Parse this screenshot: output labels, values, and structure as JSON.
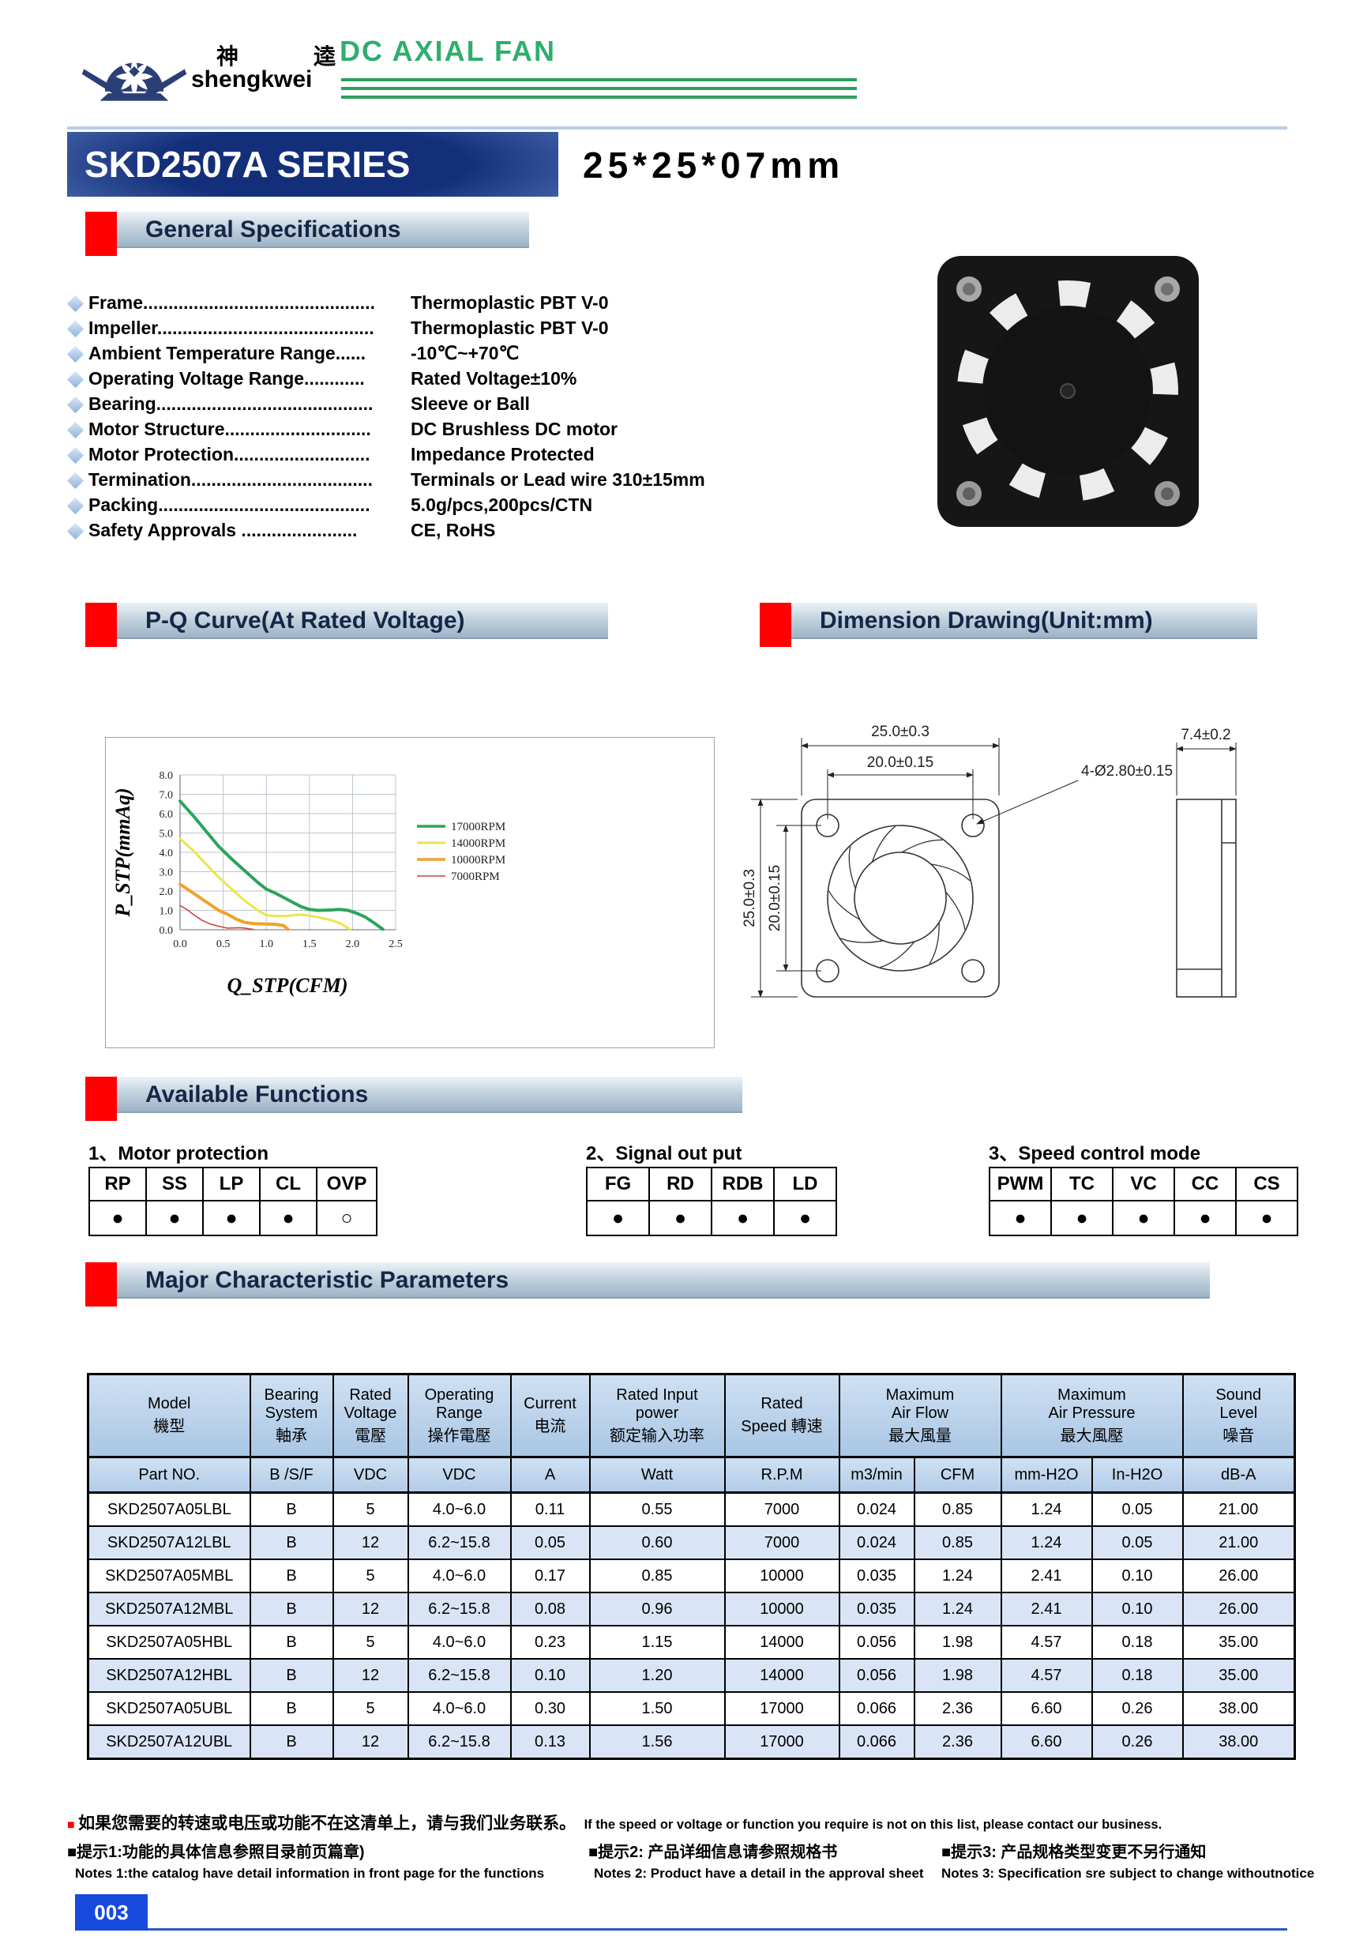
{
  "colors": {
    "brand_green": "#2fae6d",
    "navy": "#152647",
    "logo_navy": "#2b3f77",
    "section_red": "#fe0000",
    "table_header_blue": "#b9d2ec",
    "row_alt_blue": "#d9e5f6",
    "page_box_blue": "#1749dd"
  },
  "header": {
    "logo_cn_left": "神",
    "logo_cn_right": "逵",
    "logo_en": "shengkwei",
    "product_line": "DC AXIAL FAN"
  },
  "title": {
    "series": "SKD2507A SERIES",
    "size": "25*25*07mm"
  },
  "section_titles": {
    "general": "General Specifications",
    "pq_curve": "P-Q Curve(At Rated Voltage)",
    "dimension": "Dimension Drawing(Unit:mm)",
    "functions": "Available Functions",
    "parameters": "Major Characteristic Parameters"
  },
  "specs": [
    {
      "label": "Frame..............................................",
      "value": "Thermoplastic PBT V-0"
    },
    {
      "label": "Impeller...........................................",
      "value": "Thermoplastic PBT V-0"
    },
    {
      "label": "Ambient Temperature Range......",
      "value": "-10℃~+70℃"
    },
    {
      "label": "Operating Voltage Range............",
      "value": "Rated Voltage±10%"
    },
    {
      "label": "Bearing...........................................",
      "value": "Sleeve or Ball"
    },
    {
      "label": "Motor Structure.............................",
      "value": "DC Brushless DC motor"
    },
    {
      "label": "Motor Protection...........................",
      "value": "Impedance Protected"
    },
    {
      "label": "Termination....................................",
      "value": "Terminals or Lead wire 310±15mm"
    },
    {
      "label": "Packing..........................................",
      "value": "5.0g/pcs,200pcs/CTN"
    },
    {
      "label": "Safety Approvals .......................",
      "value": "CE, RoHS"
    }
  ],
  "chart_data": {
    "type": "line",
    "title": "",
    "xlabel": "Q_STP(CFM)",
    "ylabel": "P_STP(mmAq)",
    "xlim": [
      0,
      2.5
    ],
    "ylim": [
      0,
      8
    ],
    "xticks": [
      "0.0",
      "0.5",
      "1.0",
      "1.5",
      "2.0",
      "2.5"
    ],
    "yticks": [
      "0.0",
      "1.0",
      "2.0",
      "3.0",
      "4.0",
      "5.0",
      "6.0",
      "7.0",
      "8.0"
    ],
    "grid": true,
    "legend_position": "right",
    "series": [
      {
        "name": "17000RPM",
        "color": "#2ba45c",
        "width": 4,
        "points": [
          [
            0,
            6.65
          ],
          [
            0.15,
            5.9
          ],
          [
            0.3,
            5.1
          ],
          [
            0.45,
            4.3
          ],
          [
            0.6,
            3.65
          ],
          [
            0.75,
            3.05
          ],
          [
            0.9,
            2.45
          ],
          [
            1.0,
            2.1
          ],
          [
            1.1,
            1.9
          ],
          [
            1.25,
            1.55
          ],
          [
            1.4,
            1.2
          ],
          [
            1.5,
            1.05
          ],
          [
            1.6,
            1.0
          ],
          [
            1.75,
            1.02
          ],
          [
            1.85,
            1.05
          ],
          [
            1.95,
            1.0
          ],
          [
            2.05,
            0.85
          ],
          [
            2.15,
            0.65
          ],
          [
            2.25,
            0.35
          ],
          [
            2.35,
            0.03
          ]
        ]
      },
      {
        "name": "14000RPM",
        "color": "#ede44c",
        "width": 3,
        "points": [
          [
            0,
            4.7
          ],
          [
            0.15,
            4.1
          ],
          [
            0.3,
            3.4
          ],
          [
            0.45,
            2.7
          ],
          [
            0.6,
            2.1
          ],
          [
            0.75,
            1.5
          ],
          [
            0.9,
            1.0
          ],
          [
            1.0,
            0.75
          ],
          [
            1.1,
            0.7
          ],
          [
            1.25,
            0.72
          ],
          [
            1.4,
            0.78
          ],
          [
            1.5,
            0.72
          ],
          [
            1.6,
            0.65
          ],
          [
            1.75,
            0.5
          ],
          [
            1.85,
            0.35
          ],
          [
            1.97,
            0.03
          ]
        ]
      },
      {
        "name": "10000RPM",
        "color": "#f0a22c",
        "width": 4,
        "points": [
          [
            0,
            2.35
          ],
          [
            0.15,
            1.9
          ],
          [
            0.3,
            1.45
          ],
          [
            0.45,
            1.0
          ],
          [
            0.55,
            0.8
          ],
          [
            0.65,
            0.55
          ],
          [
            0.75,
            0.38
          ],
          [
            0.85,
            0.32
          ],
          [
            1.0,
            0.3
          ],
          [
            1.1,
            0.28
          ],
          [
            1.2,
            0.22
          ],
          [
            1.25,
            0.03
          ]
        ]
      },
      {
        "name": "7000RPM",
        "color": "#cc4444",
        "width": 1.6,
        "points": [
          [
            0,
            1.25
          ],
          [
            0.08,
            1.05
          ],
          [
            0.15,
            0.8
          ],
          [
            0.25,
            0.5
          ],
          [
            0.35,
            0.3
          ],
          [
            0.45,
            0.18
          ],
          [
            0.55,
            0.08
          ],
          [
            0.65,
            0.1
          ],
          [
            0.72,
            0.1
          ],
          [
            0.8,
            0.05
          ],
          [
            0.85,
            0.02
          ]
        ]
      }
    ]
  },
  "dimension_drawing": {
    "width_outer": "25.0±0.3",
    "width_inner": "20.0±0.15",
    "holes": "4-Ø2.80±0.15",
    "depth": "7.4±0.2",
    "height_outer": "25.0±0.3",
    "height_inner": "20.0±0.15"
  },
  "functions": [
    {
      "title": "1、Motor protection",
      "columns": [
        "RP",
        "SS",
        "LP",
        "CL",
        "OVP"
      ],
      "marks": [
        "●",
        "●",
        "●",
        "●",
        "○"
      ]
    },
    {
      "title": "2、Signal out put",
      "columns": [
        "FG",
        "RD",
        "RDB",
        "LD"
      ],
      "marks": [
        "●",
        "●",
        "●",
        "●"
      ]
    },
    {
      "title": "3、Speed control mode",
      "columns": [
        "PWM",
        "TC",
        "VC",
        "CC",
        "CS"
      ],
      "marks": [
        "●",
        "●",
        "●",
        "●",
        "●"
      ]
    }
  ],
  "param_table": {
    "header_row1": [
      {
        "lines": [
          "Model",
          "機型"
        ],
        "colspan": 1
      },
      {
        "lines": [
          "Bearing",
          "System",
          "軸承"
        ],
        "colspan": 1
      },
      {
        "lines": [
          "Rated",
          "Voltage",
          "電壓"
        ],
        "colspan": 1
      },
      {
        "lines": [
          "Operating",
          "Range",
          "操作電壓"
        ],
        "colspan": 1
      },
      {
        "lines": [
          "Current",
          "电流"
        ],
        "colspan": 1
      },
      {
        "lines": [
          "Rated Input",
          "power",
          "额定输入功率"
        ],
        "colspan": 1
      },
      {
        "lines": [
          "Rated",
          "Speed 轉速"
        ],
        "colspan": 1
      },
      {
        "lines": [
          "Maximum",
          "Air Flow",
          "最大風量"
        ],
        "colspan": 2
      },
      {
        "lines": [
          "Maximum",
          "Air  Pressure",
          "最大風壓"
        ],
        "colspan": 2
      },
      {
        "lines": [
          "Sound",
          "Level",
          "噪音"
        ],
        "colspan": 1
      }
    ],
    "header_row2": [
      "Part NO.",
      "B /S/F",
      "VDC",
      "VDC",
      "A",
      "Watt",
      "R.P.M",
      "m3/min",
      "CFM",
      "mm-H2O",
      "In-H2O",
      "dB-A"
    ],
    "rows": [
      [
        "SKD2507A05LBL",
        "B",
        "5",
        "4.0~6.0",
        "0.11",
        "0.55",
        "7000",
        "0.024",
        "0.85",
        "1.24",
        "0.05",
        "21.00"
      ],
      [
        "SKD2507A12LBL",
        "B",
        "12",
        "6.2~15.8",
        "0.05",
        "0.60",
        "7000",
        "0.024",
        "0.85",
        "1.24",
        "0.05",
        "21.00"
      ],
      [
        "SKD2507A05MBL",
        "B",
        "5",
        "4.0~6.0",
        "0.17",
        "0.85",
        "10000",
        "0.035",
        "1.24",
        "2.41",
        "0.10",
        "26.00"
      ],
      [
        "SKD2507A12MBL",
        "B",
        "12",
        "6.2~15.8",
        "0.08",
        "0.96",
        "10000",
        "0.035",
        "1.24",
        "2.41",
        "0.10",
        "26.00"
      ],
      [
        "SKD2507A05HBL",
        "B",
        "5",
        "4.0~6.0",
        "0.23",
        "1.15",
        "14000",
        "0.056",
        "1.98",
        "4.57",
        "0.18",
        "35.00"
      ],
      [
        "SKD2507A12HBL",
        "B",
        "12",
        "6.2~15.8",
        "0.10",
        "1.20",
        "14000",
        "0.056",
        "1.98",
        "4.57",
        "0.18",
        "35.00"
      ],
      [
        "SKD2507A05UBL",
        "B",
        "5",
        "4.0~6.0",
        "0.30",
        "1.50",
        "17000",
        "0.066",
        "2.36",
        "6.60",
        "0.26",
        "38.00"
      ],
      [
        "SKD2507A12UBL",
        "B",
        "12",
        "6.2~15.8",
        "0.13",
        "1.56",
        "17000",
        "0.066",
        "2.36",
        "6.60",
        "0.26",
        "38.00"
      ]
    ]
  },
  "notes": {
    "marker": "■",
    "contact_cn": "如果您需要的转速或电压或功能不在这清单上，请与我们业务联系。",
    "contact_en": "If the speed or voltage or function you require is not on this list, please contact our business.",
    "tip1": "■提示1:功能的具体信息参照目录前页篇章)",
    "tip2": "■提示2: 产品详细信息请参照规格书",
    "tip3": "■提示3: 产品规格类型变更不另行通知",
    "note1": "Notes 1:the catalog have detail information in front page for the functions",
    "note2": "Notes 2: Product have a   detail in the approval sheet",
    "note3": "Notes 3: Specification sre subject to change withoutnotice"
  },
  "page_number": "003"
}
